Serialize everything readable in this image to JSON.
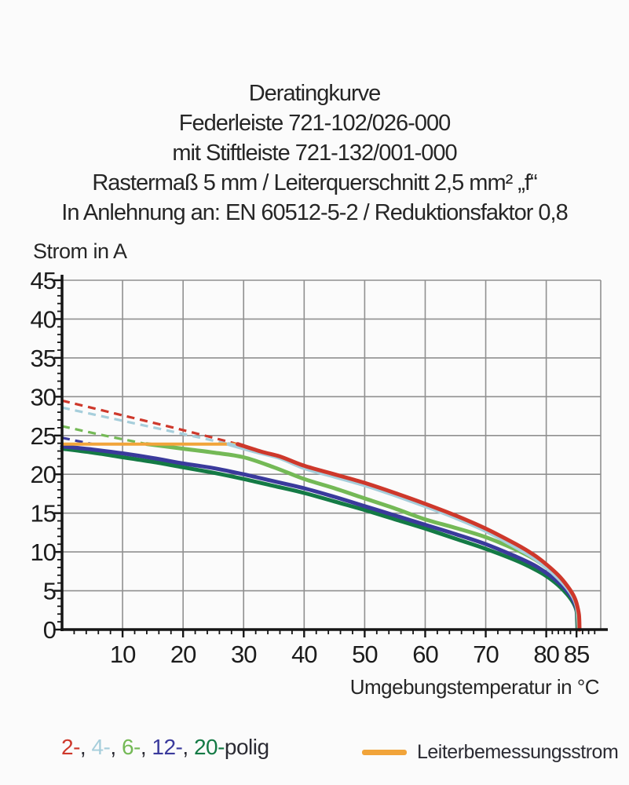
{
  "title_lines": [
    "Deratingkurve",
    "Federleiste 721-102/026-000",
    "mit Stiftleiste 721-132/001-000",
    "Rastermaß 5 mm / Leiterquerschnitt 2,5 mm² „f“",
    "In Anlehnung an: EN 60512-5-2 / Reduktionsfaktor 0,8"
  ],
  "axis": {
    "y_title": "Strom in A",
    "x_title": "Umgebungstemperatur in °C"
  },
  "legend": {
    "poles": [
      {
        "label": "2-",
        "color": "#ce382b"
      },
      {
        "label": "4-",
        "color": "#a6cedb"
      },
      {
        "label": "6-",
        "color": "#74b956"
      },
      {
        "label": "12-",
        "color": "#3a3a9c"
      },
      {
        "label": "20-",
        "color": "#147a45"
      }
    ],
    "separator": ", ",
    "suffix": "polig",
    "rated_label": "Leiterbemessungsstrom",
    "rated_color": "#f1a43a"
  },
  "chart_data": {
    "type": "line",
    "title": "Deratingkurve",
    "xlabel": "Umgebungstemperatur in °C",
    "ylabel": "Strom in A",
    "xlim": [
      0,
      89
    ],
    "ylim": [
      0,
      45
    ],
    "xticks": [
      10,
      20,
      30,
      40,
      50,
      60,
      70,
      80,
      85
    ],
    "yticks": [
      0,
      5,
      10,
      15,
      20,
      25,
      30,
      35,
      40,
      45
    ],
    "grid_x": [
      10,
      20,
      30,
      40,
      50,
      60,
      70,
      80,
      89
    ],
    "grid_y": [
      5,
      10,
      15,
      20,
      25,
      30,
      35,
      40,
      45
    ],
    "grid_color": "#909090",
    "axis_color": "#151515",
    "legend_position": "bottom",
    "series": [
      {
        "name": "2-polig-projected",
        "color": "#ce382b",
        "style": "dashed",
        "width": 3.2,
        "points": [
          [
            0,
            29.5
          ],
          [
            10,
            27.6
          ],
          [
            20,
            25.7
          ],
          [
            29,
            23.9
          ]
        ]
      },
      {
        "name": "4-polig-projected",
        "color": "#a6cedb",
        "style": "dashed",
        "width": 3.2,
        "points": [
          [
            0,
            28.6
          ],
          [
            10,
            26.9
          ],
          [
            20,
            25.2
          ],
          [
            27.5,
            23.9
          ]
        ]
      },
      {
        "name": "6-polig-projected",
        "color": "#74b956",
        "style": "dashed",
        "width": 3.2,
        "points": [
          [
            0,
            26.2
          ],
          [
            7,
            25.0
          ],
          [
            14,
            23.9
          ]
        ]
      },
      {
        "name": "12-polig-projected",
        "color": "#3a3a9c",
        "style": "dashed",
        "width": 3.2,
        "points": [
          [
            0,
            24.7
          ],
          [
            5,
            23.9
          ]
        ]
      },
      {
        "name": "20-polig",
        "color": "#147a45",
        "style": "solid",
        "width": 5,
        "points": [
          [
            0,
            23.3
          ],
          [
            5,
            22.8
          ],
          [
            10,
            22.2
          ],
          [
            15,
            21.6
          ],
          [
            20,
            20.9
          ],
          [
            25,
            20.2
          ],
          [
            30,
            19.4
          ],
          [
            35,
            18.5
          ],
          [
            40,
            17.6
          ],
          [
            45,
            16.5
          ],
          [
            50,
            15.4
          ],
          [
            55,
            14.2
          ],
          [
            60,
            13.0
          ],
          [
            65,
            11.7
          ],
          [
            70,
            10.4
          ],
          [
            75,
            8.9
          ],
          [
            78,
            7.8
          ],
          [
            80,
            6.9
          ],
          [
            82,
            5.7
          ],
          [
            83.5,
            4.5
          ],
          [
            84.5,
            3.4
          ],
          [
            85,
            2.4
          ],
          [
            85.1,
            1.2
          ],
          [
            85.15,
            0
          ]
        ]
      },
      {
        "name": "12-polig",
        "color": "#3a3a9c",
        "style": "solid",
        "width": 5,
        "points": [
          [
            0,
            23.6
          ],
          [
            5,
            23.2
          ],
          [
            10,
            22.7
          ],
          [
            15,
            22.1
          ],
          [
            20,
            21.4
          ],
          [
            25,
            20.8
          ],
          [
            30,
            20.0
          ],
          [
            35,
            19.1
          ],
          [
            40,
            18.2
          ],
          [
            45,
            17.1
          ],
          [
            50,
            15.9
          ],
          [
            55,
            14.7
          ],
          [
            60,
            13.5
          ],
          [
            65,
            12.3
          ],
          [
            70,
            11.0
          ],
          [
            75,
            9.4
          ],
          [
            78,
            8.3
          ],
          [
            80,
            7.3
          ],
          [
            82,
            6.1
          ],
          [
            83.5,
            4.9
          ],
          [
            84.5,
            3.7
          ],
          [
            85,
            2.6
          ],
          [
            85.15,
            1.3
          ],
          [
            85.25,
            0
          ]
        ]
      },
      {
        "name": "6-polig",
        "color": "#74b956",
        "style": "solid",
        "width": 5,
        "points": [
          [
            14,
            23.9
          ],
          [
            20,
            23.3
          ],
          [
            25,
            22.8
          ],
          [
            30,
            22.2
          ],
          [
            35,
            20.9
          ],
          [
            40,
            19.4
          ],
          [
            45,
            18.2
          ],
          [
            50,
            16.9
          ],
          [
            55,
            15.6
          ],
          [
            60,
            14.2
          ],
          [
            65,
            13.1
          ],
          [
            70,
            11.9
          ],
          [
            75,
            10.3
          ],
          [
            78,
            9.1
          ],
          [
            80,
            8.0
          ],
          [
            82,
            6.7
          ],
          [
            83.5,
            5.4
          ],
          [
            84.5,
            4.2
          ],
          [
            85,
            3.0
          ],
          [
            85.2,
            1.6
          ],
          [
            85.3,
            0
          ]
        ]
      },
      {
        "name": "Leiterbemessungsstrom",
        "color": "#f1a43a",
        "style": "solid",
        "width": 4,
        "points": [
          [
            0,
            23.9
          ],
          [
            29,
            23.9
          ]
        ]
      },
      {
        "name": "4-polig",
        "color": "#a6cedb",
        "style": "solid",
        "width": 5,
        "points": [
          [
            27.5,
            23.9
          ],
          [
            32,
            22.9
          ],
          [
            36,
            22.1
          ],
          [
            40,
            20.8
          ],
          [
            45,
            19.7
          ],
          [
            50,
            18.6
          ],
          [
            55,
            17.3
          ],
          [
            60,
            15.9
          ],
          [
            65,
            14.4
          ],
          [
            70,
            12.7
          ],
          [
            75,
            10.6
          ],
          [
            78,
            9.2
          ],
          [
            80,
            8.0
          ],
          [
            82,
            6.6
          ],
          [
            83.5,
            5.3
          ],
          [
            84.5,
            4.1
          ],
          [
            85,
            3.1
          ],
          [
            85.3,
            1.7
          ],
          [
            85.4,
            0
          ]
        ]
      },
      {
        "name": "2-polig",
        "color": "#ce382b",
        "style": "solid",
        "width": 5,
        "points": [
          [
            29,
            23.9
          ],
          [
            33,
            22.9
          ],
          [
            36,
            22.3
          ],
          [
            40,
            21.1
          ],
          [
            45,
            20.0
          ],
          [
            50,
            18.9
          ],
          [
            55,
            17.6
          ],
          [
            60,
            16.2
          ],
          [
            65,
            14.7
          ],
          [
            70,
            13.0
          ],
          [
            75,
            11.0
          ],
          [
            78,
            9.6
          ],
          [
            80,
            8.4
          ],
          [
            82,
            7.0
          ],
          [
            83.5,
            5.6
          ],
          [
            84.5,
            4.4
          ],
          [
            85,
            3.4
          ],
          [
            85.4,
            1.9
          ],
          [
            85.5,
            0
          ]
        ]
      }
    ]
  }
}
